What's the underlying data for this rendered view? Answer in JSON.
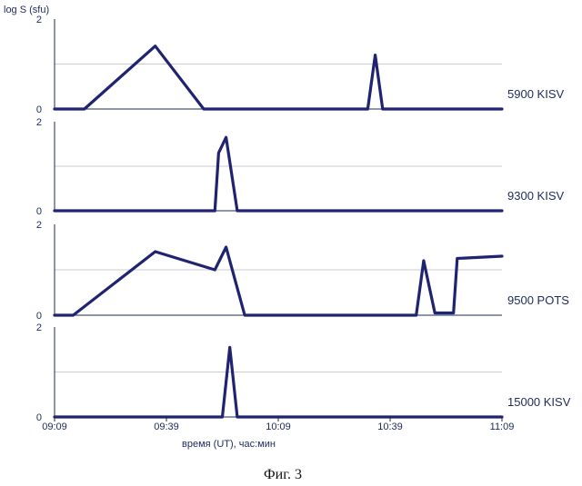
{
  "figure": {
    "y_axis_title": "log S (sfu)",
    "x_axis_title": "время (UT),  час:мин",
    "caption": "Фиг. 3"
  },
  "colors": {
    "line": "#1f2370",
    "axis": "#1b2a5a",
    "grid": "#c9c9d6"
  },
  "chart_data": [
    {
      "type": "line",
      "series": [
        {
          "name": "5900 KISV",
          "x": [
            "09:09",
            "09:17",
            "09:36",
            "09:49",
            "10:33",
            "10:35",
            "10:37",
            "11:09"
          ],
          "y": [
            0,
            0,
            1.4,
            0,
            0,
            1.2,
            0,
            0
          ]
        }
      ],
      "ylim": [
        0,
        2
      ],
      "yticks": [
        "0",
        "2"
      ],
      "grid": true
    },
    {
      "type": "line",
      "series": [
        {
          "name": "9300 KISV",
          "x": [
            "09:09",
            "09:52",
            "09:53",
            "09:55",
            "09:58",
            "11:09"
          ],
          "y": [
            0,
            0,
            1.3,
            1.65,
            0,
            0
          ]
        }
      ],
      "ylim": [
        0,
        2
      ],
      "yticks": [
        "0",
        "2"
      ],
      "grid": true
    },
    {
      "type": "line",
      "series": [
        {
          "name": "9500 POTS",
          "x": [
            "09:09",
            "09:14",
            "09:36",
            "09:52",
            "09:55",
            "10:00",
            "10:46",
            "10:48",
            "10:51",
            "10:56",
            "10:57",
            "11:09"
          ],
          "y": [
            0,
            0,
            1.4,
            1.0,
            1.5,
            0,
            0,
            1.2,
            0.05,
            0.05,
            1.25,
            1.3
          ]
        }
      ],
      "ylim": [
        0,
        2
      ],
      "yticks": [
        "0",
        "2"
      ],
      "grid": true
    },
    {
      "type": "line",
      "series": [
        {
          "name": "15000 KISV",
          "x": [
            "09:09",
            "09:54",
            "09:56",
            "09:58",
            "11:09"
          ],
          "y": [
            0,
            0,
            1.55,
            0,
            0
          ]
        }
      ],
      "ylim": [
        0,
        2
      ],
      "yticks": [
        "0",
        "2"
      ],
      "xticks": [
        "09:09",
        "09:39",
        "10:09",
        "10:39",
        "11:09"
      ],
      "grid": true
    }
  ]
}
